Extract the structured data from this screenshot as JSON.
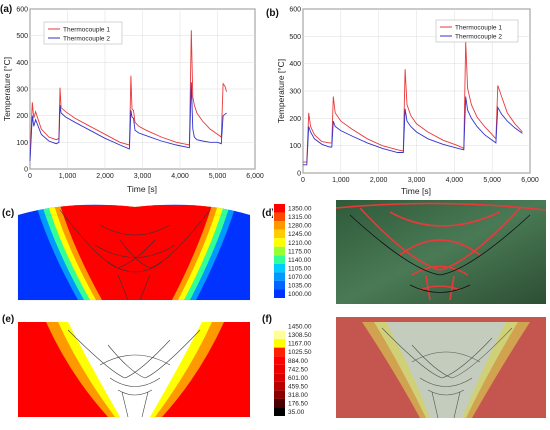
{
  "panel_labels": {
    "a": "(a)",
    "b": "(b)",
    "c": "(c)",
    "d": "(d)",
    "e": "(e)",
    "f": "(f)"
  },
  "colors": {
    "tc1": "#e8393b",
    "tc2": "#3333cc"
  },
  "chart_data": [
    {
      "type": "line",
      "panel": "(a)",
      "xlabel": "Time [s]",
      "ylabel": "Temperature [°C]",
      "xlim": [
        0,
        6000
      ],
      "ylim": [
        0,
        600
      ],
      "xticks": [
        "0",
        "1,000",
        "2,000",
        "3,000",
        "4,000",
        "5,000",
        "6,000"
      ],
      "yticks": [
        "0",
        "100",
        "200",
        "300",
        "400",
        "500",
        "600"
      ],
      "legend": "top-left",
      "grid": true,
      "series": [
        {
          "name": "Thermocouple 1",
          "color": "#e8393b",
          "x": [
            0,
            60,
            100,
            150,
            300,
            500,
            700,
            770,
            800,
            830,
            950,
            1200,
            1600,
            2000,
            2400,
            2650,
            2690,
            2720,
            2760,
            2800,
            2900,
            3100,
            3500,
            3900,
            4250,
            4300,
            4340,
            4380,
            4450,
            4600,
            4800,
            5000,
            5100,
            5150,
            5200,
            5240
          ],
          "y": [
            40,
            250,
            190,
            215,
            150,
            120,
            110,
            115,
            305,
            230,
            215,
            190,
            160,
            130,
            100,
            90,
            350,
            225,
            220,
            175,
            160,
            145,
            120,
            100,
            90,
            520,
            270,
            240,
            210,
            180,
            150,
            130,
            120,
            320,
            310,
            290
          ]
        },
        {
          "name": "Thermocouple 2",
          "color": "#3333cc",
          "x": [
            0,
            60,
            100,
            150,
            300,
            500,
            700,
            770,
            800,
            830,
            950,
            1200,
            1600,
            2000,
            2400,
            2650,
            2690,
            2720,
            2760,
            2800,
            2900,
            3100,
            3500,
            3900,
            4250,
            4300,
            4340,
            4380,
            4450,
            4600,
            4800,
            5000,
            5100,
            5150,
            5200,
            5240
          ],
          "y": [
            30,
            200,
            160,
            185,
            130,
            105,
            95,
            100,
            240,
            210,
            195,
            175,
            145,
            115,
            90,
            75,
            220,
            195,
            190,
            145,
            135,
            125,
            105,
            90,
            80,
            325,
            150,
            120,
            110,
            105,
            100,
            100,
            95,
            200,
            205,
            210
          ]
        }
      ]
    },
    {
      "type": "line",
      "panel": "(b)",
      "xlabel": "Time [s]",
      "ylabel": "Temperature [°C]",
      "xlim": [
        0,
        6000
      ],
      "ylim": [
        0,
        600
      ],
      "xticks": [
        "0",
        "1,000",
        "2,000",
        "3,000",
        "4,000",
        "5,000",
        "6,000"
      ],
      "yticks": [
        "0",
        "100",
        "200",
        "300",
        "400",
        "500",
        "600"
      ],
      "legend": "top-right",
      "grid": true,
      "series": [
        {
          "name": "Thermocouple 1",
          "color": "#e8393b",
          "x": [
            0,
            100,
            150,
            200,
            300,
            500,
            700,
            760,
            800,
            850,
            1000,
            1300,
            1700,
            2100,
            2500,
            2650,
            2700,
            2750,
            2850,
            3000,
            3300,
            3700,
            4100,
            4250,
            4300,
            4350,
            4450,
            4600,
            4800,
            5000,
            5100,
            5150,
            5250,
            5400,
            5600,
            5800
          ],
          "y": [
            40,
            40,
            220,
            170,
            140,
            115,
            110,
            110,
            280,
            220,
            190,
            160,
            125,
            100,
            85,
            80,
            380,
            250,
            210,
            180,
            150,
            120,
            100,
            90,
            480,
            310,
            250,
            205,
            170,
            140,
            125,
            320,
            280,
            220,
            180,
            150
          ]
        },
        {
          "name": "Thermocouple 2",
          "color": "#3333cc",
          "x": [
            0,
            100,
            150,
            200,
            300,
            500,
            700,
            760,
            800,
            850,
            1000,
            1300,
            1700,
            2100,
            2500,
            2650,
            2700,
            2750,
            2850,
            3000,
            3300,
            3700,
            4100,
            4250,
            4300,
            4350,
            4450,
            4600,
            4800,
            5000,
            5100,
            5150,
            5250,
            5400,
            5600,
            5800
          ],
          "y": [
            30,
            30,
            170,
            150,
            125,
            105,
            95,
            95,
            190,
            170,
            155,
            135,
            110,
            90,
            75,
            75,
            235,
            190,
            170,
            150,
            125,
            105,
            90,
            85,
            280,
            230,
            200,
            170,
            140,
            120,
            110,
            240,
            215,
            190,
            165,
            145
          ]
        }
      ]
    },
    {
      "type": "heatmap",
      "panel": "(d)",
      "colorbar": [
        "1350.00",
        "1315.00",
        "1280.00",
        "1245.00",
        "1210.00",
        "1175.00",
        "1140.00",
        "1105.00",
        "1070.00",
        "1035.00",
        "1000.00"
      ],
      "colors": [
        "#ff0000",
        "#ff4a00",
        "#ff9900",
        "#ffcc00",
        "#ffff00",
        "#99ff33",
        "#33ff99",
        "#00ccff",
        "#0099ff",
        "#0066ff",
        "#0033ff"
      ]
    },
    {
      "type": "heatmap",
      "panel": "(f)",
      "colorbar": [
        "1450.00",
        "1308.50",
        "1167.00",
        "1025.50",
        "884.00",
        "742.50",
        "601.00",
        "459.50",
        "318.00",
        "176.50",
        "35.00"
      ],
      "colors": [
        "#ffffff",
        "#ffff99",
        "#ffff00",
        "#ff2200",
        "#ff0000",
        "#ee0000",
        "#d80000",
        "#b80000",
        "#8a0000",
        "#4a0000",
        "#000000"
      ]
    }
  ]
}
